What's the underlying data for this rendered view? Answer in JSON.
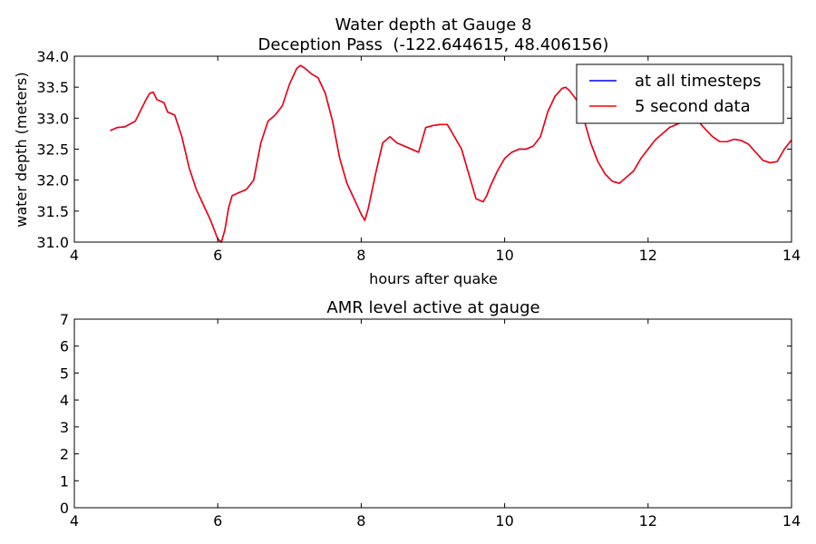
{
  "chart_data": [
    {
      "type": "line",
      "title": "Water depth at Gauge 8",
      "subtitle": "Deception Pass  (-122.644615, 48.406156)",
      "xlabel": "hours after quake",
      "ylabel": "water depth (meters)",
      "xlim": [
        4,
        14
      ],
      "ylim": [
        31.0,
        34.0
      ],
      "x_ticks": [
        "4",
        "6",
        "8",
        "10",
        "12",
        "14"
      ],
      "y_ticks": [
        "31.0",
        "31.5",
        "32.0",
        "32.5",
        "33.0",
        "33.5",
        "34.0"
      ],
      "grid": false,
      "legend": "top-right",
      "series": [
        {
          "name": "at all timesteps",
          "color": "#0000ff",
          "x": [
            4.5,
            4.6,
            4.7,
            4.85,
            5.0,
            5.05,
            5.1,
            5.15,
            5.25,
            5.3,
            5.4,
            5.5,
            5.6,
            5.7,
            5.8,
            5.9,
            5.95,
            6.0,
            6.05,
            6.1,
            6.15,
            6.2,
            6.3,
            6.4,
            6.5,
            6.55,
            6.6,
            6.7,
            6.8,
            6.9,
            7.0,
            7.1,
            7.15,
            7.2,
            7.3,
            7.4,
            7.5,
            7.6,
            7.7,
            7.8,
            7.9,
            8.0,
            8.05,
            8.1,
            8.2,
            8.3,
            8.4,
            8.5,
            8.6,
            8.7,
            8.8,
            8.9,
            9.0,
            9.1,
            9.2,
            9.3,
            9.4,
            9.5,
            9.6,
            9.7,
            9.75,
            9.8,
            9.9,
            10.0,
            10.1,
            10.2,
            10.3,
            10.4,
            10.5,
            10.6,
            10.7,
            10.8,
            10.85,
            10.9,
            11.0,
            11.1,
            11.2,
            11.3,
            11.4,
            11.5,
            11.6,
            11.7,
            11.8,
            11.9,
            12.0,
            12.1,
            12.2,
            12.3,
            12.4,
            12.5,
            12.6,
            12.7,
            12.8,
            12.9,
            13.0,
            13.1,
            13.2,
            13.3,
            13.4,
            13.5,
            13.6,
            13.7,
            13.8,
            13.9,
            14.0
          ],
          "values": [
            32.8,
            32.85,
            32.86,
            32.95,
            33.3,
            33.4,
            33.42,
            33.3,
            33.25,
            33.1,
            33.05,
            32.7,
            32.2,
            31.85,
            31.6,
            31.35,
            31.2,
            31.05,
            31.0,
            31.2,
            31.55,
            31.75,
            31.8,
            31.85,
            32.0,
            32.3,
            32.6,
            32.95,
            33.05,
            33.2,
            33.55,
            33.8,
            33.85,
            33.82,
            33.72,
            33.65,
            33.4,
            32.95,
            32.35,
            31.95,
            31.7,
            31.45,
            31.35,
            31.55,
            32.1,
            32.6,
            32.7,
            32.6,
            32.55,
            32.5,
            32.45,
            32.85,
            32.88,
            32.9,
            32.9,
            32.7,
            32.5,
            32.1,
            31.7,
            31.65,
            31.75,
            31.9,
            32.15,
            32.35,
            32.45,
            32.5,
            32.5,
            32.55,
            32.7,
            33.1,
            33.35,
            33.48,
            33.5,
            33.45,
            33.3,
            33.0,
            32.6,
            32.3,
            32.1,
            31.98,
            31.95,
            32.05,
            32.15,
            32.35,
            32.5,
            32.65,
            32.75,
            32.85,
            32.9,
            32.95,
            32.98,
            32.95,
            32.82,
            32.7,
            32.62,
            32.62,
            32.66,
            32.64,
            32.58,
            32.45,
            32.32,
            32.28,
            32.3,
            32.5,
            32.65
          ]
        },
        {
          "name": "5 second data",
          "color": "#ff0000",
          "x": [
            4.5,
            4.6,
            4.7,
            4.85,
            5.0,
            5.05,
            5.1,
            5.15,
            5.25,
            5.3,
            5.4,
            5.5,
            5.6,
            5.7,
            5.8,
            5.9,
            5.95,
            6.0,
            6.05,
            6.1,
            6.15,
            6.2,
            6.3,
            6.4,
            6.5,
            6.55,
            6.6,
            6.7,
            6.8,
            6.9,
            7.0,
            7.1,
            7.15,
            7.2,
            7.3,
            7.4,
            7.5,
            7.6,
            7.7,
            7.8,
            7.9,
            8.0,
            8.05,
            8.1,
            8.2,
            8.3,
            8.4,
            8.5,
            8.6,
            8.7,
            8.8,
            8.9,
            9.0,
            9.1,
            9.2,
            9.3,
            9.4,
            9.5,
            9.6,
            9.7,
            9.75,
            9.8,
            9.9,
            10.0,
            10.1,
            10.2,
            10.3,
            10.4,
            10.5,
            10.6,
            10.7,
            10.8,
            10.85,
            10.9,
            11.0,
            11.1,
            11.2,
            11.3,
            11.4,
            11.5,
            11.6,
            11.7,
            11.8,
            11.9,
            12.0,
            12.1,
            12.2,
            12.3,
            12.4,
            12.5,
            12.6,
            12.7,
            12.8,
            12.9,
            13.0,
            13.1,
            13.2,
            13.3,
            13.4,
            13.5,
            13.6,
            13.7,
            13.8,
            13.9,
            14.0
          ],
          "values": [
            32.8,
            32.85,
            32.86,
            32.95,
            33.3,
            33.4,
            33.42,
            33.3,
            33.25,
            33.1,
            33.05,
            32.7,
            32.2,
            31.85,
            31.6,
            31.35,
            31.2,
            31.05,
            31.0,
            31.2,
            31.55,
            31.75,
            31.8,
            31.85,
            32.0,
            32.3,
            32.6,
            32.95,
            33.05,
            33.2,
            33.55,
            33.8,
            33.85,
            33.82,
            33.72,
            33.65,
            33.4,
            32.95,
            32.35,
            31.95,
            31.7,
            31.45,
            31.35,
            31.55,
            32.1,
            32.6,
            32.7,
            32.6,
            32.55,
            32.5,
            32.45,
            32.85,
            32.88,
            32.9,
            32.9,
            32.7,
            32.5,
            32.1,
            31.7,
            31.65,
            31.75,
            31.9,
            32.15,
            32.35,
            32.45,
            32.5,
            32.5,
            32.55,
            32.7,
            33.1,
            33.35,
            33.48,
            33.5,
            33.45,
            33.3,
            33.0,
            32.6,
            32.3,
            32.1,
            31.98,
            31.95,
            32.05,
            32.15,
            32.35,
            32.5,
            32.65,
            32.75,
            32.85,
            32.9,
            32.95,
            32.98,
            32.95,
            32.82,
            32.7,
            32.62,
            32.62,
            32.66,
            32.64,
            32.58,
            32.45,
            32.32,
            32.28,
            32.3,
            32.5,
            32.65
          ]
        }
      ]
    },
    {
      "type": "line",
      "title": "AMR level active at gauge",
      "xlabel": "",
      "ylabel": "",
      "xlim": [
        4,
        14
      ],
      "ylim": [
        0,
        7
      ],
      "x_ticks": [
        "4",
        "6",
        "8",
        "10",
        "12",
        "14"
      ],
      "y_ticks": [
        "0",
        "1",
        "2",
        "3",
        "4",
        "5",
        "6",
        "7"
      ],
      "grid": false,
      "series": []
    }
  ]
}
